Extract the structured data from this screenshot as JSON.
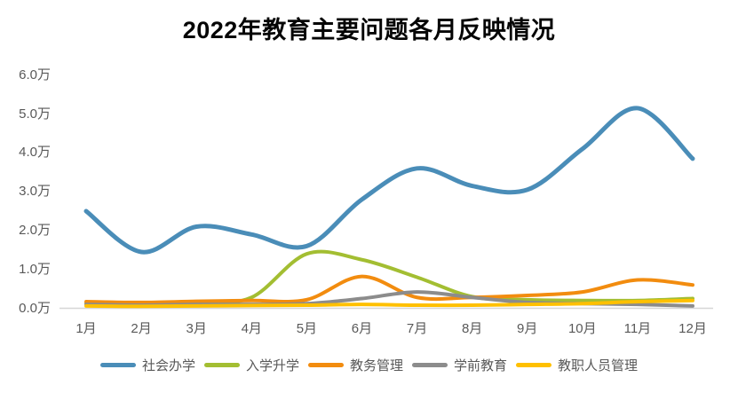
{
  "chart_data": {
    "type": "line",
    "title": "2022年教育主要问题各月反映情况",
    "categories": [
      "1月",
      "2月",
      "3月",
      "4月",
      "5月",
      "6月",
      "7月",
      "8月",
      "9月",
      "10月",
      "11月",
      "12月"
    ],
    "series": [
      {
        "name": "社会办学",
        "color": "#4A8DB8",
        "values": [
          2.5,
          1.45,
          2.1,
          1.9,
          1.6,
          2.8,
          3.6,
          3.15,
          3.05,
          4.1,
          5.15,
          3.85
        ]
      },
      {
        "name": "入学升学",
        "color": "#A3BE32",
        "values": [
          0.13,
          0.12,
          0.15,
          0.28,
          1.4,
          1.25,
          0.8,
          0.3,
          0.22,
          0.2,
          0.2,
          0.25
        ]
      },
      {
        "name": "教务管理",
        "color": "#F28C0F",
        "values": [
          0.17,
          0.15,
          0.18,
          0.2,
          0.22,
          0.82,
          0.28,
          0.28,
          0.33,
          0.42,
          0.73,
          0.6
        ]
      },
      {
        "name": "学前教育",
        "color": "#8C8C8C",
        "values": [
          0.1,
          0.08,
          0.1,
          0.1,
          0.12,
          0.25,
          0.42,
          0.28,
          0.15,
          0.12,
          0.1,
          0.06
        ]
      },
      {
        "name": "教职人员管理",
        "color": "#FFC000",
        "values": [
          0.06,
          0.05,
          0.06,
          0.07,
          0.08,
          0.1,
          0.08,
          0.08,
          0.1,
          0.12,
          0.17,
          0.2
        ]
      }
    ],
    "y_ticks": [
      "6.0万",
      "5.0万",
      "4.0万",
      "3.0万",
      "2.0万",
      "1.0万",
      "0.0万"
    ],
    "y_tick_values": [
      6,
      5,
      4,
      3,
      2,
      1,
      0
    ],
    "ylim": [
      0,
      6
    ],
    "unit_label": "万",
    "grid": false,
    "legend_position": "bottom",
    "axis_line_color": "#d6d6d6",
    "text_color": "#595959",
    "title_color": "#050505",
    "background_color": "#ffffff"
  }
}
